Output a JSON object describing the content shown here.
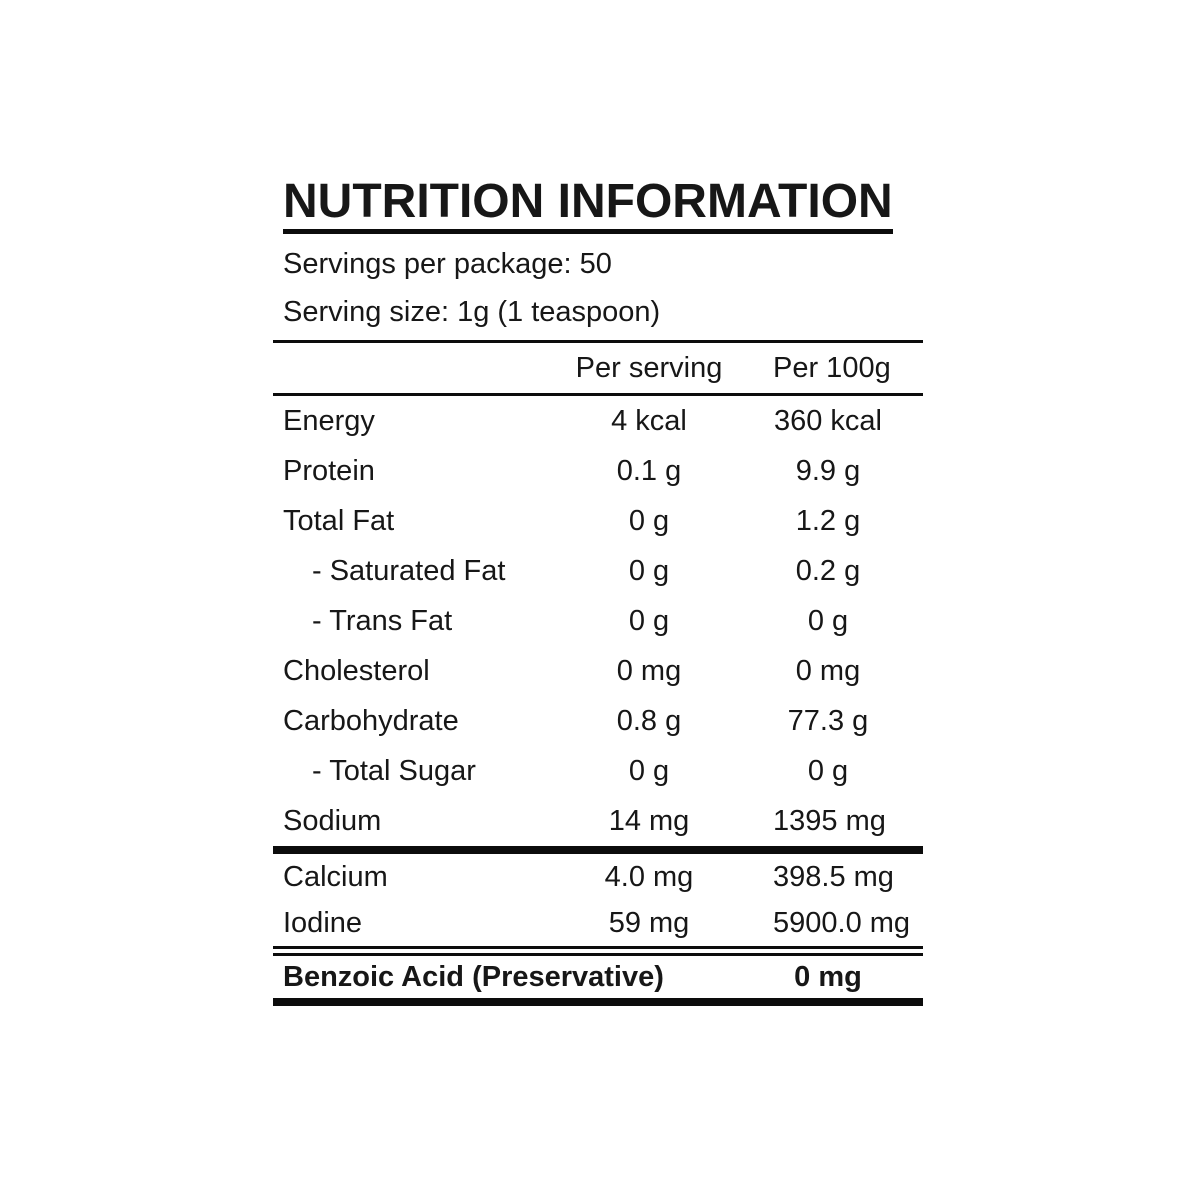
{
  "title": "NUTRITION INFORMATION",
  "meta": {
    "servings_per_package": "Servings per package: 50",
    "serving_size": "Serving size: 1g (1 teaspoon)"
  },
  "table": {
    "col_headers": {
      "per_serving": "Per serving",
      "per_100g": "Per 100g"
    },
    "rows": [
      {
        "label": "Energy",
        "per_serving": "4 kcal",
        "per_100g": "360 kcal"
      },
      {
        "label": "Protein",
        "per_serving": "0.1 g",
        "per_100g": "9.9 g"
      },
      {
        "label": "Total Fat",
        "per_serving": "0 g",
        "per_100g": "1.2 g"
      },
      {
        "label": "- Saturated Fat",
        "per_serving": "0 g",
        "per_100g": "0.2 g"
      },
      {
        "label": "- Trans Fat",
        "per_serving": "0 g",
        "per_100g": "0 g"
      },
      {
        "label": "Cholesterol",
        "per_serving": "0 mg",
        "per_100g": "0 mg"
      },
      {
        "label": "Carbohydrate",
        "per_serving": "0.8 g",
        "per_100g": "77.3 g"
      },
      {
        "label": "- Total Sugar",
        "per_serving": "0 g",
        "per_100g": "0 g"
      },
      {
        "label": "Sodium",
        "per_serving": "14 mg",
        "per_100g": "1395 mg"
      }
    ],
    "mineral_rows": [
      {
        "label": "Calcium",
        "per_serving": "4.0 mg",
        "per_100g": "398.5 mg"
      },
      {
        "label": "Iodine",
        "per_serving": "59 mg",
        "per_100g": "5900.0 mg"
      }
    ],
    "additive_row": {
      "label": "Benzoic Acid (Preservative)",
      "value": "0 mg"
    }
  },
  "colors": {
    "text": "#171717",
    "rule": "#0c0c0c",
    "background": "#ffffff"
  }
}
